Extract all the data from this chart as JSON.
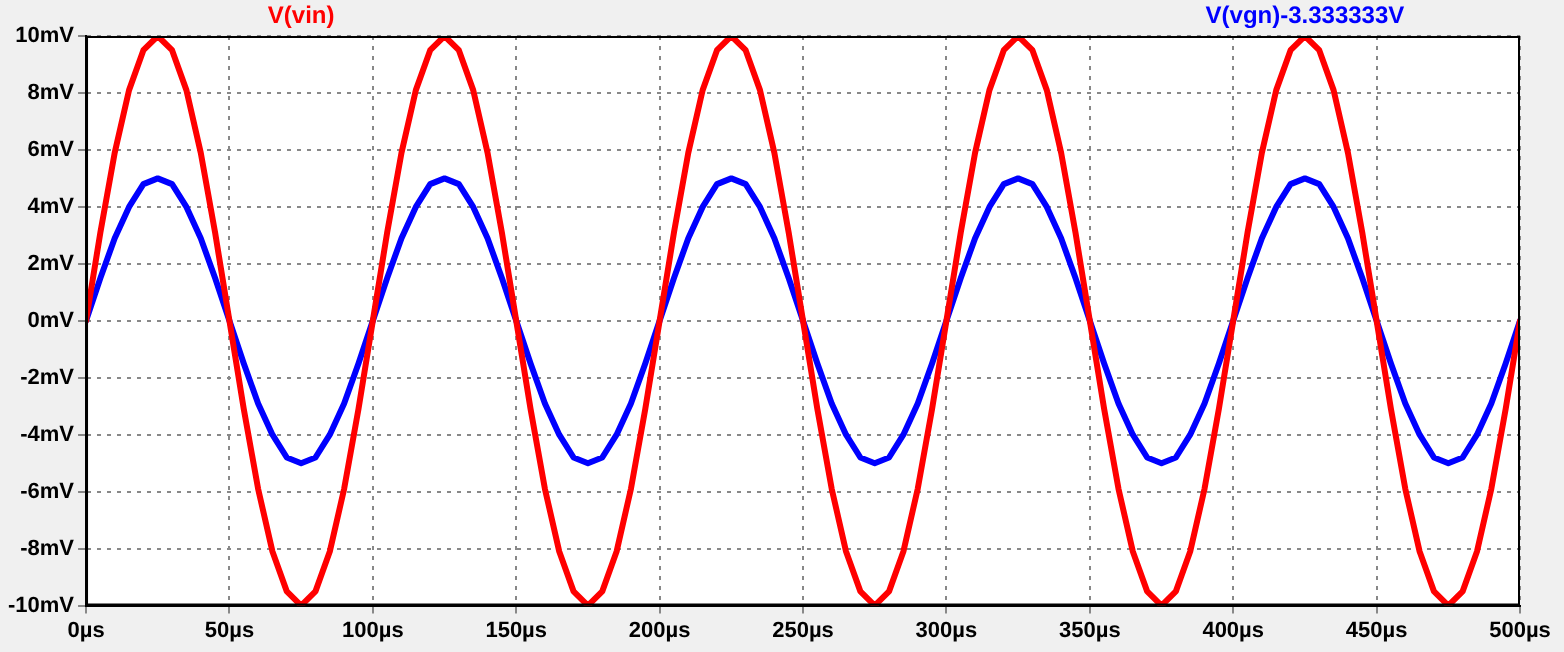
{
  "chart_data": {
    "type": "line",
    "x": [
      0,
      5,
      10,
      15,
      20,
      25,
      30,
      35,
      40,
      45,
      50,
      55,
      60,
      65,
      70,
      75,
      80,
      85,
      90,
      95,
      100,
      105,
      110,
      115,
      120,
      125,
      130,
      135,
      140,
      145,
      150,
      155,
      160,
      165,
      170,
      175,
      180,
      185,
      190,
      195,
      200,
      205,
      210,
      215,
      220,
      225,
      230,
      235,
      240,
      245,
      250,
      255,
      260,
      265,
      270,
      275,
      280,
      285,
      290,
      295,
      300,
      305,
      310,
      315,
      320,
      325,
      330,
      335,
      340,
      345,
      350,
      355,
      360,
      365,
      370,
      375,
      380,
      385,
      390,
      395,
      400,
      405,
      410,
      415,
      420,
      425,
      430,
      435,
      440,
      445,
      450,
      455,
      460,
      465,
      470,
      475,
      480,
      485,
      490,
      495,
      500
    ],
    "series": [
      {
        "name": "V(vin)",
        "color": "#ff0000",
        "values": [
          0,
          3.1,
          5.9,
          8.1,
          9.5,
          10,
          9.5,
          8.1,
          5.9,
          3.1,
          0,
          -3.1,
          -5.9,
          -8.1,
          -9.5,
          -10,
          -9.5,
          -8.1,
          -5.9,
          -3.1,
          0,
          3.1,
          5.9,
          8.1,
          9.5,
          10,
          9.5,
          8.1,
          5.9,
          3.1,
          0,
          -3.1,
          -5.9,
          -8.1,
          -9.5,
          -10,
          -9.5,
          -8.1,
          -5.9,
          -3.1,
          0,
          3.1,
          5.9,
          8.1,
          9.5,
          10,
          9.5,
          8.1,
          5.9,
          3.1,
          0,
          -3.1,
          -5.9,
          -8.1,
          -9.5,
          -10,
          -9.5,
          -8.1,
          -5.9,
          -3.1,
          0,
          3.1,
          5.9,
          8.1,
          9.5,
          10,
          9.5,
          8.1,
          5.9,
          3.1,
          0,
          -3.1,
          -5.9,
          -8.1,
          -9.5,
          -10,
          -9.5,
          -8.1,
          -5.9,
          -3.1,
          0,
          3.1,
          5.9,
          8.1,
          9.5,
          10,
          9.5,
          8.1,
          5.9,
          3.1,
          0,
          -3.1,
          -5.9,
          -8.1,
          -9.5,
          -10,
          -9.5,
          -8.1,
          -5.9,
          -3.1,
          0
        ]
      },
      {
        "name": "V(vgn)-3.333333V",
        "color": "#0000ff",
        "values": [
          0,
          1.5,
          2.9,
          4,
          4.8,
          5,
          4.8,
          4,
          2.9,
          1.5,
          0,
          -1.5,
          -2.9,
          -4,
          -4.8,
          -5,
          -4.8,
          -4,
          -2.9,
          -1.5,
          0,
          1.5,
          2.9,
          4,
          4.8,
          5,
          4.8,
          4,
          2.9,
          1.5,
          0,
          -1.5,
          -2.9,
          -4,
          -4.8,
          -5,
          -4.8,
          -4,
          -2.9,
          -1.5,
          0,
          1.5,
          2.9,
          4,
          4.8,
          5,
          4.8,
          4,
          2.9,
          1.5,
          0,
          -1.5,
          -2.9,
          -4,
          -4.8,
          -5,
          -4.8,
          -4,
          -2.9,
          -1.5,
          0,
          1.5,
          2.9,
          4,
          4.8,
          5,
          4.8,
          4,
          2.9,
          1.5,
          0,
          -1.5,
          -2.9,
          -4,
          -4.8,
          -5,
          -4.8,
          -4,
          -2.9,
          -1.5,
          0,
          1.5,
          2.9,
          4,
          4.8,
          5,
          4.8,
          4,
          2.9,
          1.5,
          0,
          -1.5,
          -2.9,
          -4,
          -4.8,
          -5,
          -4.8,
          -4,
          -2.9,
          -1.5,
          0
        ]
      }
    ],
    "xlim": [
      0,
      500
    ],
    "xticks": [
      {
        "value": 0,
        "label": "0µs"
      },
      {
        "value": 50,
        "label": "50µs"
      },
      {
        "value": 100,
        "label": "100µs"
      },
      {
        "value": 150,
        "label": "150µs"
      },
      {
        "value": 200,
        "label": "200µs"
      },
      {
        "value": 250,
        "label": "250µs"
      },
      {
        "value": 300,
        "label": "300µs"
      },
      {
        "value": 350,
        "label": "350µs"
      },
      {
        "value": 400,
        "label": "400µs"
      },
      {
        "value": 450,
        "label": "450µs"
      },
      {
        "value": 500,
        "label": "500µs"
      }
    ],
    "ylim": [
      -10,
      10
    ],
    "yticks": [
      {
        "value": -10,
        "label": "-10mV"
      },
      {
        "value": -8,
        "label": "-8mV"
      },
      {
        "value": -6,
        "label": "-6mV"
      },
      {
        "value": -4,
        "label": "-4mV"
      },
      {
        "value": -2,
        "label": "-2mV"
      },
      {
        "value": 0,
        "label": "0mV"
      },
      {
        "value": 2,
        "label": "2mV"
      },
      {
        "value": 4,
        "label": "4mV"
      },
      {
        "value": 6,
        "label": "6mV"
      },
      {
        "value": 8,
        "label": "8mV"
      },
      {
        "value": 10,
        "label": "10mV"
      }
    ],
    "grid": true,
    "legend": "top",
    "marker": "none",
    "line_style": "solid"
  }
}
